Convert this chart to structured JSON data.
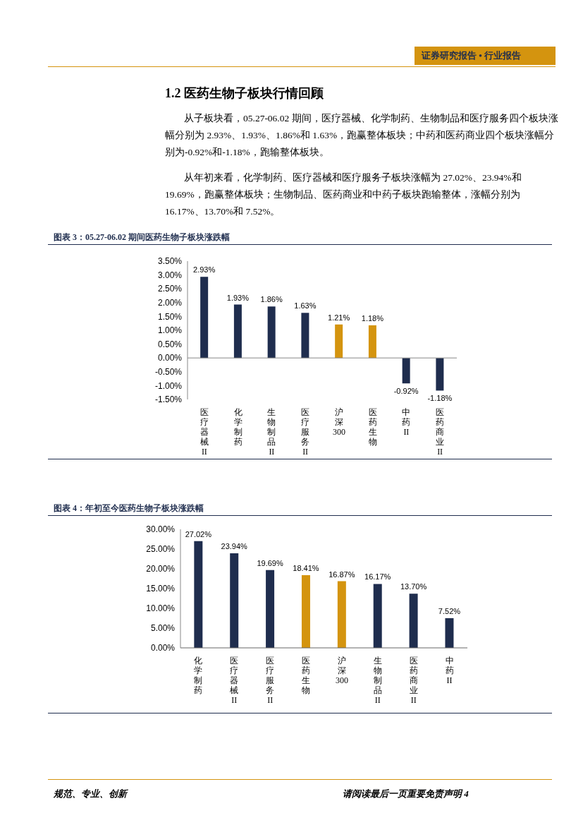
{
  "chart_data": [
    {
      "type": "bar",
      "title": "图表 3：05.27-06.02 期间医药生物子板块涨跌幅",
      "categories": [
        "医疗器械II",
        "化学制药",
        "生物制品II",
        "医疗服务II",
        "沪深300",
        "医药生物",
        "中药II",
        "医药商业II"
      ],
      "values": [
        2.93,
        1.93,
        1.86,
        1.63,
        1.21,
        1.18,
        -0.92,
        -1.18
      ],
      "value_labels": [
        "2.93%",
        "1.93%",
        "1.86%",
        "1.63%",
        "1.21%",
        "1.18%",
        "-0.92%",
        "-1.18%"
      ],
      "colors": [
        "#1f2d4e",
        "#1f2d4e",
        "#1f2d4e",
        "#1f2d4e",
        "#d4940f",
        "#d4940f",
        "#1f2d4e",
        "#1f2d4e"
      ],
      "ylim": [
        -1.5,
        3.5
      ],
      "yticks": [
        {
          "value": -1.5,
          "label": "-1.50%"
        },
        {
          "value": -1,
          "label": "-1.00%"
        },
        {
          "value": -0.5,
          "label": "-0.50%"
        },
        {
          "value": 0,
          "label": "0.00%"
        },
        {
          "value": 0.5,
          "label": "0.50%"
        },
        {
          "value": 1,
          "label": "1.00%"
        },
        {
          "value": 1.5,
          "label": "1.50%"
        },
        {
          "value": 2,
          "label": "2.00%"
        },
        {
          "value": 2.5,
          "label": "2.50%"
        },
        {
          "value": 3,
          "label": "3.00%"
        },
        {
          "value": 3.5,
          "label": "3.50%"
        }
      ],
      "annotations": [
        "证券研究报告 • 行业报告",
        "1.2 医药生物子板块行情回顾",
        "从子板块看，05.27-06.02 期间，医疗器械、化学制药、生物制品和医疗服务四个板块涨幅分别为 2.93%、1.93%、1.86%和 1.63%，跑赢整体板块；中药和医药商业四个板块涨幅分别为-0.92%和-1.18%，跑输整体板块。",
        "从年初来看，化学制药、医疗器械和医疗服务子板块涨幅为 27.02%、23.94%和 19.69%，跑赢整体板块；生物制品、医药商业和中药子板块跑输整体，涨幅分别为 16.17%、13.70%和 7.52%。"
      ]
    },
    {
      "type": "bar",
      "title": "图表 4：年初至今医药生物子板块涨跌幅",
      "categories": [
        "化学制药",
        "医疗器械II",
        "医疗服务II",
        "医药生物",
        "沪深300",
        "生物制品II",
        "医药商业II",
        "中药II"
      ],
      "values": [
        27.02,
        23.94,
        19.69,
        18.41,
        16.87,
        16.17,
        13.7,
        7.52
      ],
      "value_labels": [
        "27.02%",
        "23.94%",
        "19.69%",
        "18.41%",
        "16.87%",
        "16.17%",
        "13.70%",
        "7.52%"
      ],
      "colors": [
        "#1f2d4e",
        "#1f2d4e",
        "#1f2d4e",
        "#d4940f",
        "#d4940f",
        "#1f2d4e",
        "#1f2d4e",
        "#1f2d4e"
      ],
      "ylim": [
        0,
        30
      ],
      "yticks": [
        {
          "value": 0,
          "label": "0.00%"
        },
        {
          "value": 5,
          "label": "5.00%"
        },
        {
          "value": 10,
          "label": "10.00%"
        },
        {
          "value": 15,
          "label": "15.00%"
        },
        {
          "value": 20,
          "label": "20.00%"
        },
        {
          "value": 25,
          "label": "25.00%"
        },
        {
          "value": 30,
          "label": "30.00%"
        }
      ],
      "annotations": [
        "规范、专业、创新",
        "请阅读最后一页重要免责声明 4"
      ]
    }
  ]
}
